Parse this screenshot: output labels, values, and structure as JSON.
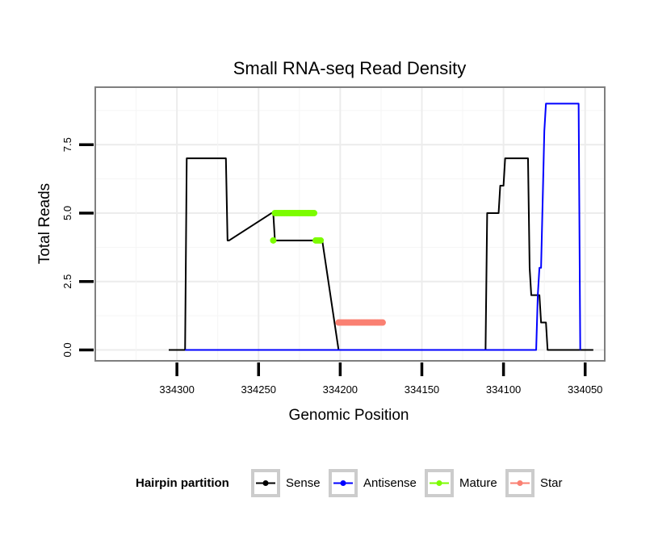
{
  "chart_data": {
    "type": "line",
    "title": "Small RNA-seq Read Density",
    "xlabel": "Genomic Position",
    "ylabel": "Total Reads",
    "x_reversed": true,
    "xlim": [
      334350,
      334038
    ],
    "ylim": [
      -0.4,
      9.6
    ],
    "x_ticks": [
      334300,
      334250,
      334200,
      334150,
      334100,
      334050
    ],
    "x_tick_labels": [
      "334300",
      "334250",
      "334200",
      "334150",
      "334100",
      "334050"
    ],
    "y_ticks": [
      0,
      2.5,
      5,
      7.5
    ],
    "y_tick_labels": [
      "0.0",
      "2.5",
      "5.0",
      "7.5"
    ],
    "grid": true,
    "legend": {
      "title": "Hairpin partition",
      "position": "bottom",
      "entries": [
        {
          "label": "Sense",
          "color": "#000000"
        },
        {
          "label": "Antisense",
          "color": "#0000ff"
        },
        {
          "label": "Mature",
          "color": "#7cfc00"
        },
        {
          "label": "Star",
          "color": "#fa8072"
        }
      ]
    },
    "series": [
      {
        "name": "Sense",
        "color": "#000000",
        "style": "line",
        "x": [
          334305,
          334295,
          334294,
          334270,
          334269,
          334268,
          334242,
          334241,
          334240,
          334239,
          334212,
          334211,
          334201,
          334200,
          334174,
          334173,
          334111,
          334110,
          334103,
          334102,
          334100,
          334099,
          334097,
          334096,
          334085,
          334084,
          334083,
          334078,
          334077,
          334074,
          334073,
          334045
        ],
        "y": [
          0,
          0,
          7,
          7,
          4,
          4,
          5,
          5,
          4,
          4,
          4,
          4,
          0,
          0,
          0,
          0,
          0,
          5,
          5,
          6,
          6,
          7,
          7,
          7,
          7,
          3,
          2,
          2,
          1,
          1,
          0,
          0
        ]
      },
      {
        "name": "Antisense",
        "color": "#0000ff",
        "style": "line",
        "x": [
          334295,
          334080,
          334079,
          334078,
          334077,
          334075,
          334074,
          334054,
          334053
        ],
        "y": [
          0,
          0,
          2,
          3,
          3,
          8,
          9,
          9,
          0
        ]
      },
      {
        "name": "Mature",
        "color": "#7cfc00",
        "style": "points",
        "x": [
          334241,
          334240,
          334239,
          334238,
          334237,
          334236,
          334235,
          334234,
          334233,
          334232,
          334231,
          334230,
          334229,
          334228,
          334227,
          334226,
          334225,
          334224,
          334223,
          334222,
          334221,
          334220,
          334219,
          334218,
          334217,
          334216,
          334215,
          334214,
          334213,
          334212
        ],
        "y": [
          4,
          5,
          5,
          5,
          5,
          5,
          5,
          5,
          5,
          5,
          5,
          5,
          5,
          5,
          5,
          5,
          5,
          5,
          5,
          5,
          5,
          5,
          5,
          5,
          5,
          5,
          4,
          4,
          4,
          4
        ]
      },
      {
        "name": "Star",
        "color": "#fa8072",
        "style": "points",
        "x": [
          334201,
          334200,
          334199,
          334198,
          334197,
          334196,
          334195,
          334194,
          334193,
          334192,
          334191,
          334190,
          334189,
          334188,
          334187,
          334186,
          334185,
          334184,
          334183,
          334182,
          334181,
          334180,
          334179,
          334178,
          334177,
          334176,
          334175,
          334174
        ],
        "y": [
          1,
          1,
          1,
          1,
          1,
          1,
          1,
          1,
          1,
          1,
          1,
          1,
          1,
          1,
          1,
          1,
          1,
          1,
          1,
          1,
          1,
          1,
          1,
          1,
          1,
          1,
          1,
          1
        ]
      }
    ]
  }
}
